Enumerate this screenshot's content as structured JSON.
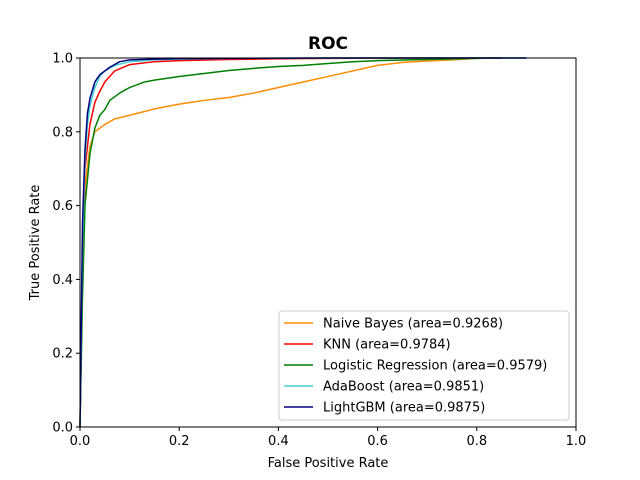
{
  "chart_data": {
    "type": "line",
    "title": "ROC",
    "xlabel": "False Positive Rate",
    "ylabel": "True Positive Rate",
    "xlim": [
      0,
      1
    ],
    "ylim": [
      0,
      1
    ],
    "xticks": [
      "0.0",
      "0.2",
      "0.4",
      "0.6",
      "0.8",
      "1.0"
    ],
    "yticks": [
      "0.0",
      "0.2",
      "0.4",
      "0.6",
      "0.8",
      "1.0"
    ],
    "grid": false,
    "legend_position": "lower-right",
    "series": [
      {
        "name": "Naive Bayes (area=0.9268)",
        "color": "#ff8c00",
        "x": [
          0,
          0.005,
          0.01,
          0.02,
          0.03,
          0.05,
          0.07,
          0.1,
          0.13,
          0.15,
          0.2,
          0.25,
          0.3,
          0.35,
          0.4,
          0.45,
          0.5,
          0.55,
          0.6,
          0.65,
          0.7,
          0.75,
          0.8,
          0.85
        ],
        "y": [
          0,
          0.4,
          0.65,
          0.76,
          0.8,
          0.82,
          0.835,
          0.845,
          0.855,
          0.862,
          0.875,
          0.885,
          0.893,
          0.905,
          0.92,
          0.935,
          0.95,
          0.965,
          0.98,
          0.988,
          0.992,
          0.995,
          0.999,
          1.0
        ]
      },
      {
        "name": "KNN (area=0.9784)",
        "color": "#ff0000",
        "x": [
          0,
          0.005,
          0.01,
          0.02,
          0.03,
          0.04,
          0.05,
          0.07,
          0.1,
          0.15,
          0.2,
          0.3,
          0.4,
          0.5,
          0.7,
          0.85
        ],
        "y": [
          0,
          0.45,
          0.7,
          0.82,
          0.88,
          0.91,
          0.935,
          0.965,
          0.982,
          0.99,
          0.993,
          0.996,
          0.998,
          0.999,
          1.0,
          1.0
        ]
      },
      {
        "name": "Logistic Regression (area=0.9579)",
        "color": "#008000",
        "x": [
          0,
          0.005,
          0.01,
          0.02,
          0.03,
          0.04,
          0.05,
          0.06,
          0.08,
          0.1,
          0.13,
          0.15,
          0.2,
          0.25,
          0.3,
          0.35,
          0.4,
          0.45,
          0.5,
          0.55,
          0.6,
          0.7,
          0.8,
          0.85
        ],
        "y": [
          0,
          0.35,
          0.6,
          0.74,
          0.81,
          0.845,
          0.86,
          0.885,
          0.905,
          0.92,
          0.935,
          0.94,
          0.95,
          0.958,
          0.966,
          0.972,
          0.977,
          0.98,
          0.985,
          0.99,
          0.993,
          0.996,
          0.999,
          1.0
        ]
      },
      {
        "name": "AdaBoost (area=0.9851)",
        "color": "#48d1cc",
        "x": [
          0,
          0.005,
          0.01,
          0.015,
          0.02,
          0.03,
          0.04,
          0.05,
          0.07,
          0.1,
          0.15,
          0.2,
          0.3,
          0.5,
          0.7,
          0.9
        ],
        "y": [
          0,
          0.5,
          0.72,
          0.82,
          0.87,
          0.92,
          0.95,
          0.965,
          0.98,
          0.99,
          0.995,
          0.997,
          0.999,
          1.0,
          1.0,
          1.0
        ]
      },
      {
        "name": "LightGBM (area=0.9875)",
        "color": "#000080",
        "x": [
          0,
          0.005,
          0.01,
          0.015,
          0.02,
          0.03,
          0.04,
          0.05,
          0.06,
          0.08,
          0.1,
          0.15,
          0.2,
          0.3,
          0.5,
          0.7,
          0.9
        ],
        "y": [
          0,
          0.55,
          0.75,
          0.85,
          0.89,
          0.935,
          0.955,
          0.965,
          0.975,
          0.99,
          0.995,
          0.997,
          0.998,
          0.999,
          1.0,
          1.0,
          1.0
        ]
      }
    ]
  }
}
